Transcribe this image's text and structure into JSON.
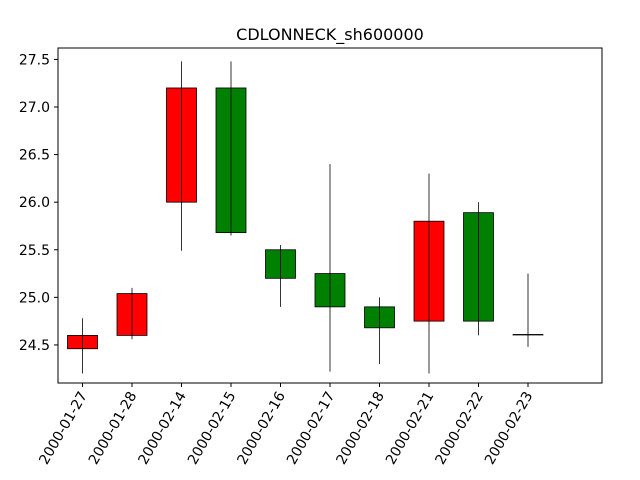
{
  "chart_data": {
    "type": "candlestick",
    "title": "CDLONNECK_sh600000",
    "xlabel": "",
    "ylabel": "",
    "ylim": [
      24.1,
      27.62
    ],
    "yticks": [
      "24.5",
      "25.0",
      "25.5",
      "26.0",
      "26.5",
      "27.0",
      "27.5"
    ],
    "categories": [
      "2000-01-27",
      "2000-01-28",
      "2000-02-14",
      "2000-02-15",
      "2000-02-16",
      "2000-02-17",
      "2000-02-18",
      "2000-02-21",
      "2000-02-22",
      "2000-02-23"
    ],
    "candles": [
      {
        "date": "2000-01-27",
        "open": 24.46,
        "close": 24.6,
        "high": 24.78,
        "low": 24.2
      },
      {
        "date": "2000-01-28",
        "open": 24.6,
        "close": 25.04,
        "high": 25.1,
        "low": 24.56
      },
      {
        "date": "2000-02-14",
        "open": 26.0,
        "close": 27.2,
        "high": 27.48,
        "low": 25.49
      },
      {
        "date": "2000-02-15",
        "open": 27.2,
        "close": 25.68,
        "high": 27.48,
        "low": 25.65
      },
      {
        "date": "2000-02-16",
        "open": 25.5,
        "close": 25.2,
        "high": 25.55,
        "low": 24.9
      },
      {
        "date": "2000-02-17",
        "open": 25.25,
        "close": 24.9,
        "high": 26.4,
        "low": 24.22
      },
      {
        "date": "2000-02-18",
        "open": 24.9,
        "close": 24.68,
        "high": 25.0,
        "low": 24.3
      },
      {
        "date": "2000-02-21",
        "open": 24.75,
        "close": 25.8,
        "high": 26.3,
        "low": 24.2
      },
      {
        "date": "2000-02-22",
        "open": 25.89,
        "close": 24.75,
        "high": 26.0,
        "low": 24.6
      },
      {
        "date": "2000-02-23",
        "open": 24.61,
        "close": 24.61,
        "high": 25.25,
        "low": 24.48
      }
    ],
    "colors": {
      "up": "#ff0000",
      "down": "#008000",
      "edge": "#000000"
    }
  }
}
